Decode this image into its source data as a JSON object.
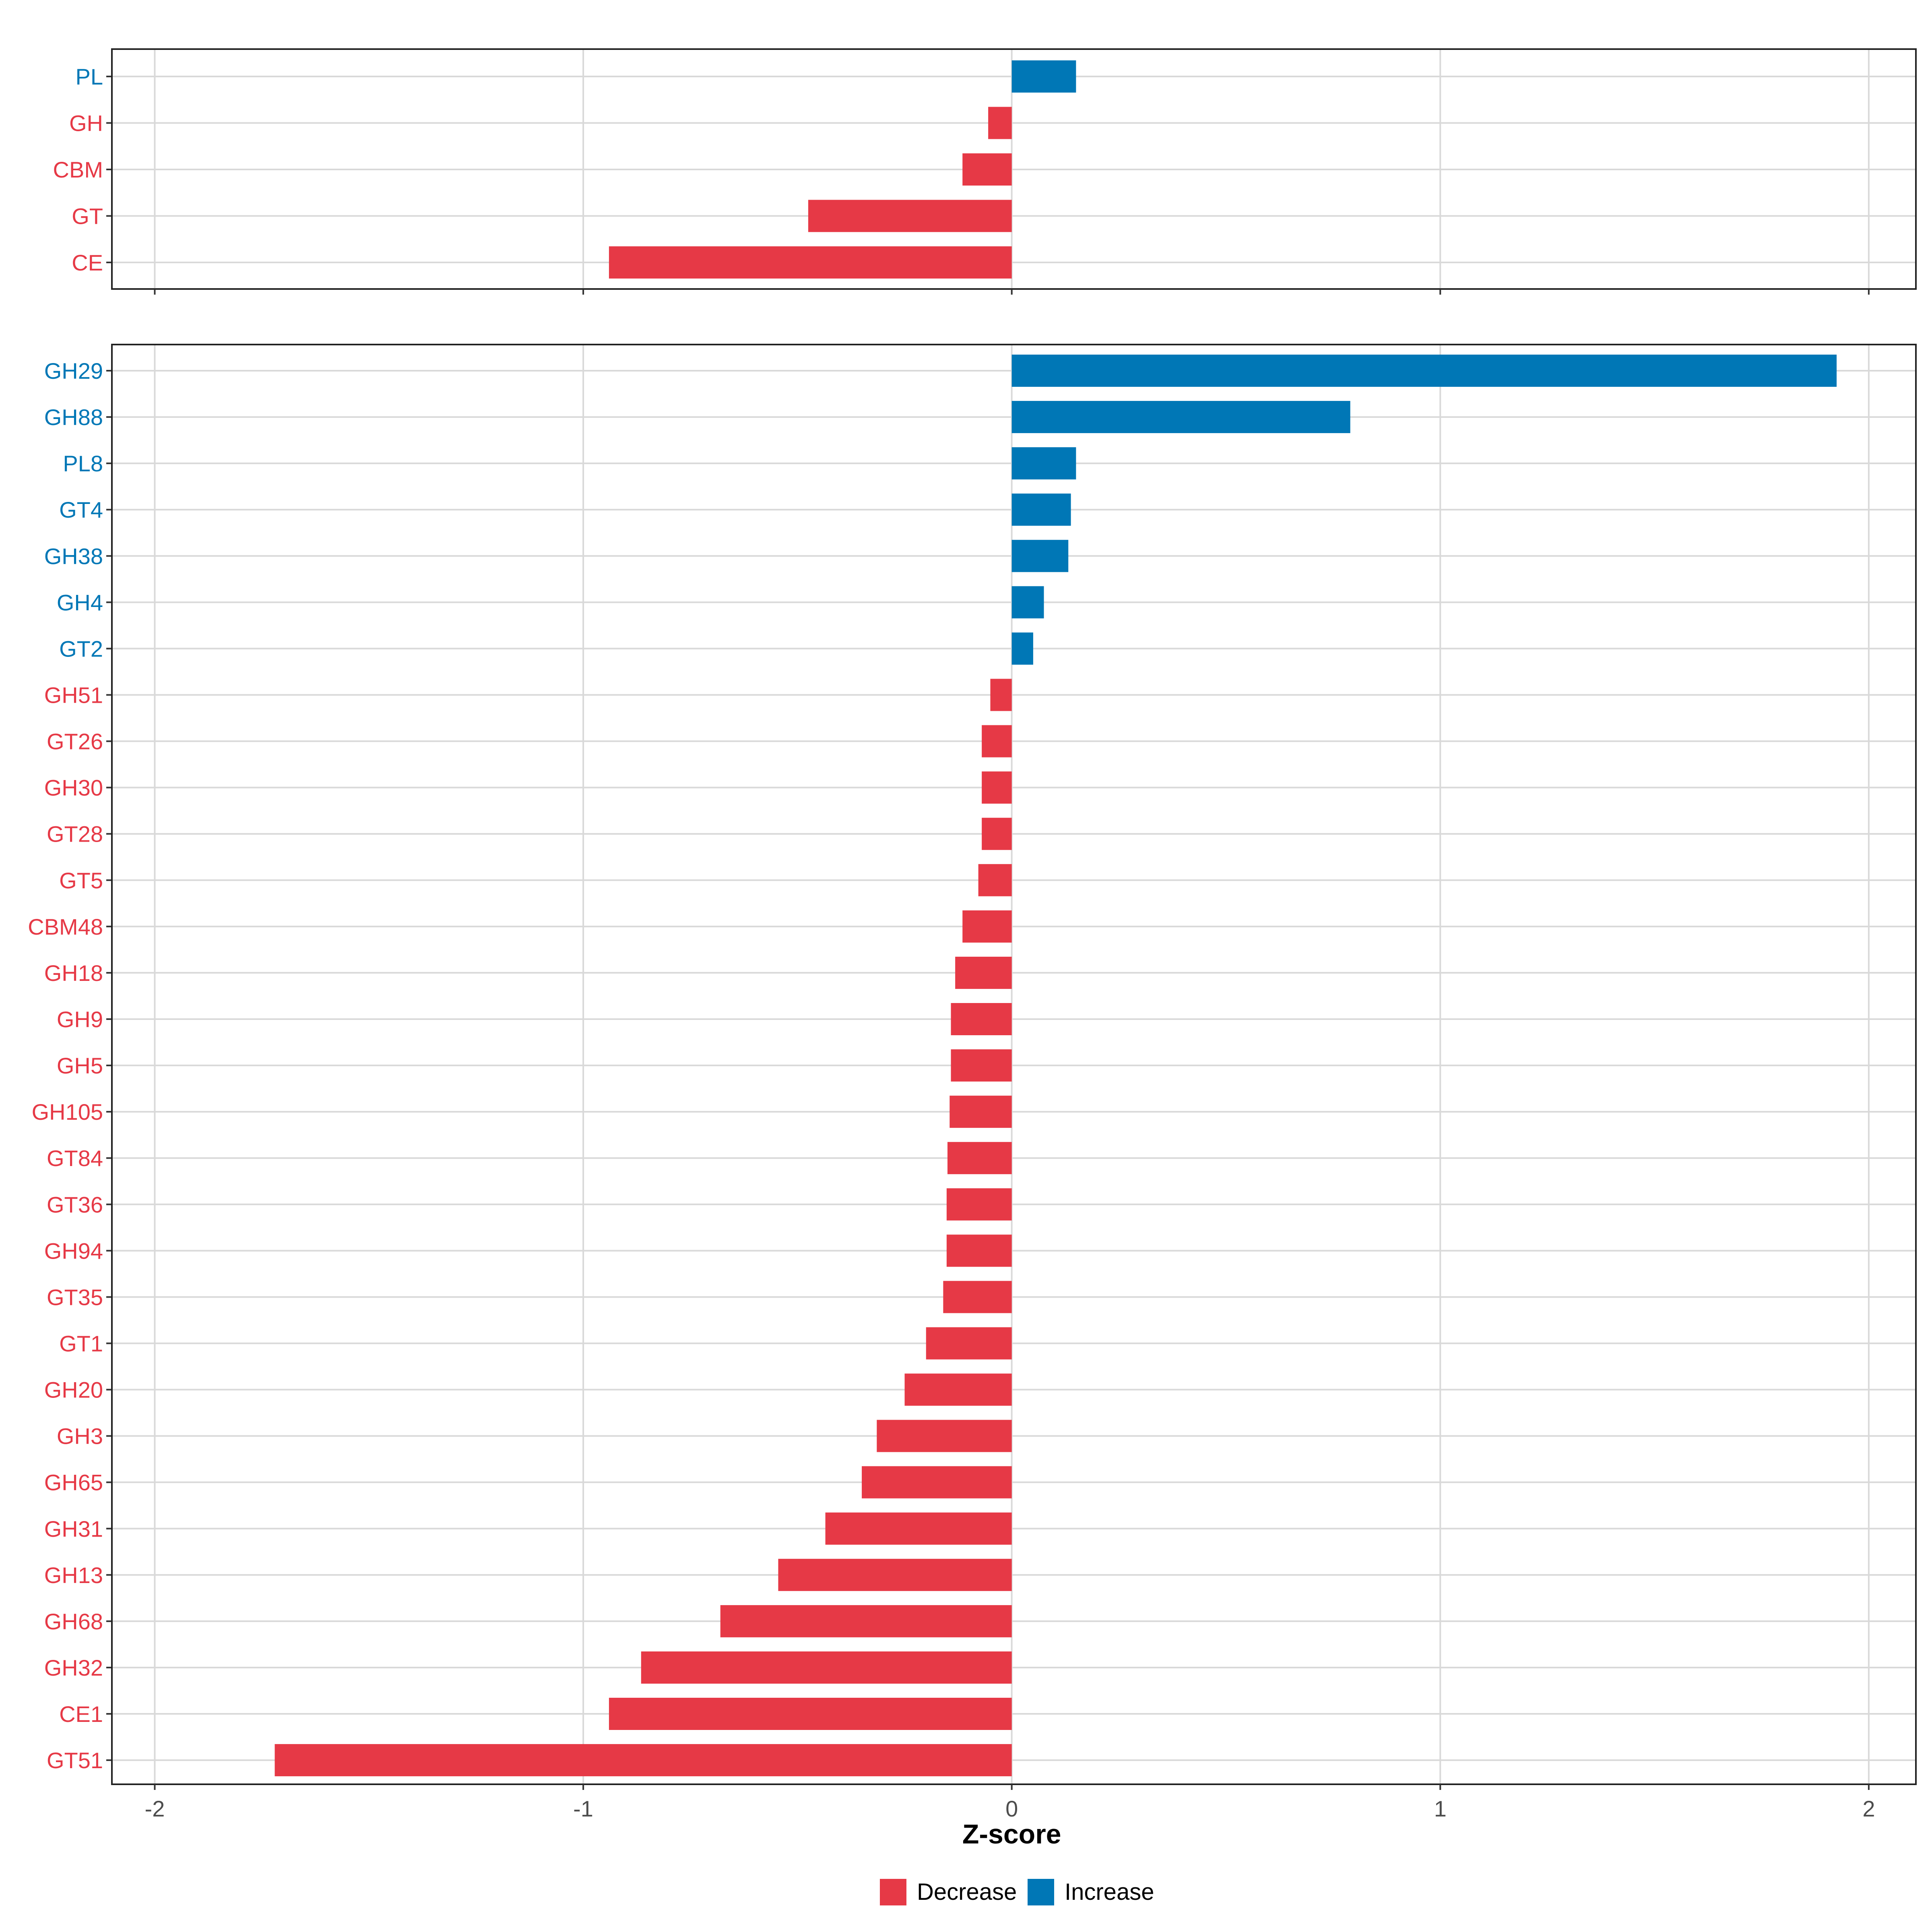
{
  "chart_data": {
    "type": "bar",
    "orientation": "horizontal",
    "xlabel": "Z-score",
    "xlim": [
      -2.1,
      2.11
    ],
    "xticks": [
      -2,
      -1,
      0,
      1,
      2
    ],
    "xtick_labels": [
      "-2",
      "-1",
      "0",
      "1",
      "2"
    ],
    "grid": true,
    "colors": {
      "Decrease": "#E63946",
      "Increase": "#0077B6"
    },
    "legend": {
      "position": "bottom",
      "entries": [
        "Decrease",
        "Increase"
      ]
    },
    "panels": [
      {
        "name": "class",
        "categories": [
          "PL",
          "GH",
          "CBM",
          "GT",
          "CE"
        ],
        "values": [
          0.15,
          -0.055,
          -0.115,
          -0.475,
          -0.94
        ],
        "groups": [
          "Increase",
          "Decrease",
          "Decrease",
          "Decrease",
          "Decrease"
        ]
      },
      {
        "name": "family",
        "categories": [
          "GH29",
          "GH88",
          "PL8",
          "GT4",
          "GH38",
          "GH4",
          "GT2",
          "GH51",
          "GT26",
          "GH30",
          "GT28",
          "GT5",
          "CBM48",
          "GH18",
          "GH9",
          "GH5",
          "GH105",
          "GT84",
          "GT36",
          "GH94",
          "GT35",
          "GT1",
          "GH20",
          "GH3",
          "GH65",
          "GH31",
          "GH13",
          "GH68",
          "GH32",
          "CE1",
          "GT51"
        ],
        "values": [
          1.925,
          0.79,
          0.15,
          0.138,
          0.132,
          0.075,
          0.05,
          -0.05,
          -0.07,
          -0.07,
          -0.07,
          -0.078,
          -0.115,
          -0.132,
          -0.142,
          -0.142,
          -0.145,
          -0.15,
          -0.152,
          -0.152,
          -0.16,
          -0.2,
          -0.25,
          -0.315,
          -0.35,
          -0.435,
          -0.545,
          -0.68,
          -0.865,
          -0.94,
          -1.72
        ],
        "groups": [
          "Increase",
          "Increase",
          "Increase",
          "Increase",
          "Increase",
          "Increase",
          "Increase",
          "Decrease",
          "Decrease",
          "Decrease",
          "Decrease",
          "Decrease",
          "Decrease",
          "Decrease",
          "Decrease",
          "Decrease",
          "Decrease",
          "Decrease",
          "Decrease",
          "Decrease",
          "Decrease",
          "Decrease",
          "Decrease",
          "Decrease",
          "Decrease",
          "Decrease",
          "Decrease",
          "Decrease",
          "Decrease",
          "Decrease",
          "Decrease"
        ]
      }
    ]
  }
}
